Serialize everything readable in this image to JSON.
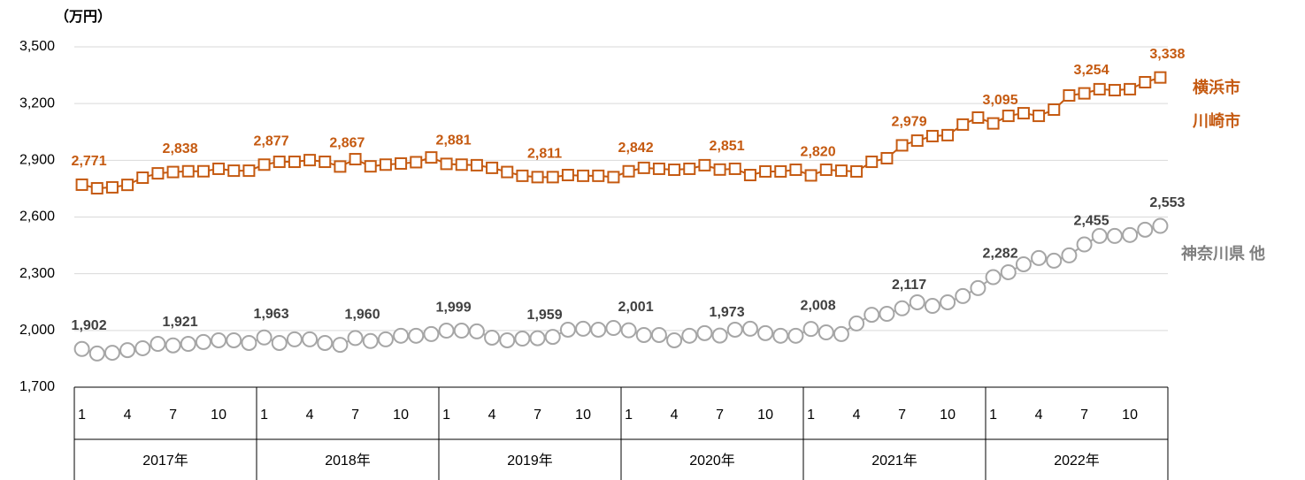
{
  "chart_data": {
    "type": "line",
    "unit_label": "（万円）",
    "categories": [
      "1",
      null,
      null,
      "4",
      null,
      null,
      "7",
      null,
      null,
      "10",
      null,
      null,
      "1",
      null,
      null,
      "4",
      null,
      null,
      "7",
      null,
      null,
      "10",
      null,
      null,
      "1",
      null,
      null,
      "4",
      null,
      null,
      "7",
      null,
      null,
      "10",
      null,
      null,
      "1",
      null,
      null,
      "4",
      null,
      null,
      "7",
      null,
      null,
      "10",
      null,
      null,
      "1",
      null,
      null,
      "4",
      null,
      null,
      "7",
      null,
      null,
      "10",
      null,
      null,
      "1",
      null,
      null,
      "4",
      null,
      null,
      "7",
      null,
      null,
      "10",
      null,
      null
    ],
    "years": [
      "2017年",
      "2018年",
      "2019年",
      "2020年",
      "2021年",
      "2022年"
    ],
    "ylim": [
      1700,
      3500
    ],
    "yticks": [
      {
        "value": 1700,
        "label": "1,700"
      },
      {
        "value": 2000,
        "label": "2,000"
      },
      {
        "value": 2300,
        "label": "2,300"
      },
      {
        "value": 2600,
        "label": "2,600"
      },
      {
        "value": 2900,
        "label": "2,900"
      },
      {
        "value": 3200,
        "label": "3,200"
      },
      {
        "value": 3500,
        "label": "3,500"
      }
    ],
    "grid": true,
    "series": [
      {
        "name": "横浜市\n川崎市",
        "color": "#c55a11",
        "marker": "square",
        "values": [
          2771,
          2752,
          2757,
          2770,
          2808,
          2831,
          2838,
          2842,
          2842,
          2855,
          2845,
          2845,
          2877,
          2892,
          2892,
          2901,
          2892,
          2867,
          2906,
          2868,
          2877,
          2883,
          2890,
          2915,
          2881,
          2877,
          2874,
          2860,
          2838,
          2818,
          2811,
          2811,
          2822,
          2818,
          2818,
          2811,
          2842,
          2860,
          2855,
          2850,
          2855,
          2874,
          2851,
          2855,
          2822,
          2841,
          2841,
          2850,
          2820,
          2850,
          2845,
          2841,
          2892,
          2911,
          2979,
          3004,
          3028,
          3033,
          3089,
          3126,
          3095,
          3135,
          3149,
          3135,
          3168,
          3243,
          3254,
          3276,
          3271,
          3276,
          3313,
          3338
        ],
        "value_labels": [
          "2,771",
          null,
          null,
          null,
          null,
          null,
          "2,838",
          null,
          null,
          null,
          null,
          null,
          "2,877",
          null,
          null,
          null,
          null,
          "2,867",
          null,
          null,
          null,
          null,
          null,
          null,
          "2,881",
          null,
          null,
          null,
          null,
          null,
          "2,811",
          null,
          null,
          null,
          null,
          null,
          "2,842",
          null,
          null,
          null,
          null,
          null,
          "2,851",
          null,
          null,
          null,
          null,
          null,
          "2,820",
          null,
          null,
          null,
          null,
          null,
          "2,979",
          null,
          null,
          null,
          null,
          null,
          "3,095",
          null,
          null,
          null,
          null,
          null,
          "3,254",
          null,
          null,
          null,
          null,
          "3,338"
        ]
      },
      {
        "name": "神奈川県 他",
        "color": "#a6a6a6",
        "label_color": "#404040",
        "marker": "circle",
        "values": [
          1902,
          1878,
          1882,
          1896,
          1906,
          1929,
          1921,
          1929,
          1939,
          1948,
          1948,
          1934,
          1963,
          1934,
          1953,
          1953,
          1934,
          1924,
          1960,
          1944,
          1953,
          1972,
          1972,
          1981,
          1999,
          1999,
          1995,
          1962,
          1948,
          1957,
          1959,
          1966,
          2004,
          2009,
          2004,
          2013,
          2001,
          1976,
          1976,
          1948,
          1972,
          1986,
          1973,
          2004,
          2009,
          1986,
          1972,
          1972,
          2008,
          1990,
          1981,
          2037,
          2083,
          2088,
          2117,
          2149,
          2130,
          2149,
          2182,
          2224,
          2282,
          2308,
          2350,
          2383,
          2369,
          2397,
          2455,
          2500,
          2500,
          2505,
          2533,
          2553
        ],
        "value_labels": [
          "1,902",
          null,
          null,
          null,
          null,
          null,
          "1,921",
          null,
          null,
          null,
          null,
          null,
          "1,963",
          null,
          null,
          null,
          null,
          null,
          "1,960",
          null,
          null,
          null,
          null,
          null,
          "1,999",
          null,
          null,
          null,
          null,
          null,
          "1,959",
          null,
          null,
          null,
          null,
          null,
          "2,001",
          null,
          null,
          null,
          null,
          null,
          "1,973",
          null,
          null,
          null,
          null,
          null,
          "2,008",
          null,
          null,
          null,
          null,
          null,
          "2,117",
          null,
          null,
          null,
          null,
          null,
          "2,282",
          null,
          null,
          null,
          null,
          null,
          "2,455",
          null,
          null,
          null,
          null,
          "2,553"
        ]
      }
    ]
  }
}
